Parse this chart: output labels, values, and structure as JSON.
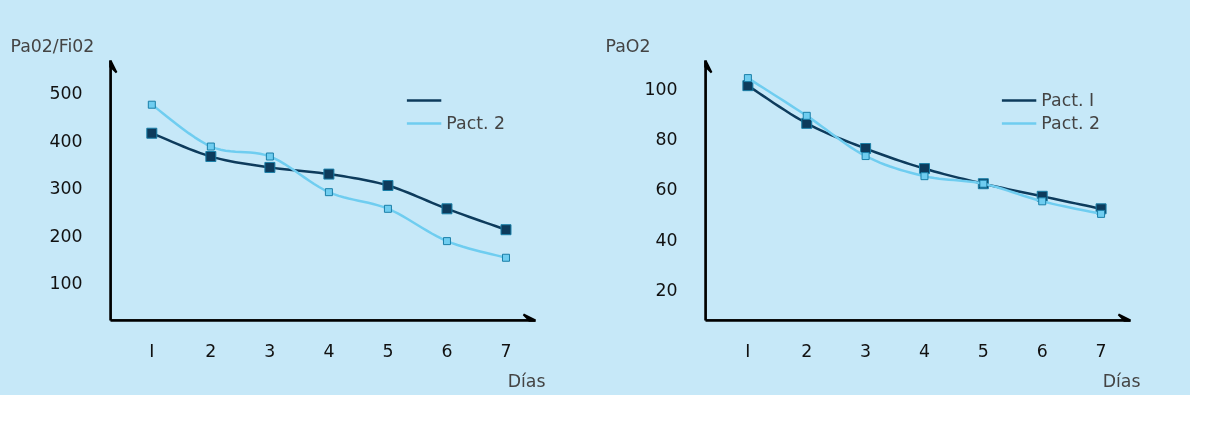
{
  "chart_data": [
    {
      "type": "line",
      "xlabel": "Días",
      "ylabel": "Pa02/Fi02",
      "x": [
        1,
        2,
        3,
        4,
        5,
        6,
        7
      ],
      "xlim": [
        0.3,
        7.5
      ],
      "xticks": [
        {
          "value": 1,
          "label": "I"
        },
        2,
        3,
        4,
        5,
        6,
        7
      ],
      "ylim": [
        21,
        568
      ],
      "yticks": [
        100,
        200,
        300,
        400,
        500
      ],
      "grid": false,
      "legend": "top right",
      "marker": "square",
      "line_style": "solid",
      "series": [
        {
          "color": "#0d3b5c",
          "values": [
            415,
            366,
            343,
            329,
            305,
            256,
            212
          ]
        },
        {
          "name": "Pact. 2",
          "color": "#6fcdf0",
          "values": [
            475,
            387,
            366,
            291,
            256,
            188,
            153
          ]
        }
      ]
    },
    {
      "type": "line",
      "xlabel": "Días",
      "ylabel": "PaO2",
      "x": [
        1,
        2,
        3,
        4,
        5,
        6,
        7
      ],
      "xlim": [
        0.28,
        7.5
      ],
      "xticks": [
        {
          "value": 1,
          "label": "I"
        },
        2,
        3,
        4,
        5,
        6,
        7
      ],
      "ylim": [
        7.6,
        111
      ],
      "yticks": [
        20,
        40,
        60,
        80,
        100
      ],
      "grid": false,
      "legend": "top right",
      "marker": "square",
      "line_style": "solid",
      "series": [
        {
          "name": "Pact. I",
          "color": "#0d3b5c",
          "values": [
            101,
            86,
            76,
            68,
            62,
            57,
            52
          ]
        },
        {
          "name": "Pact. 2",
          "color": "#6fcdf0",
          "values": [
            104,
            89,
            73,
            65,
            62,
            55,
            50
          ]
        }
      ]
    }
  ]
}
